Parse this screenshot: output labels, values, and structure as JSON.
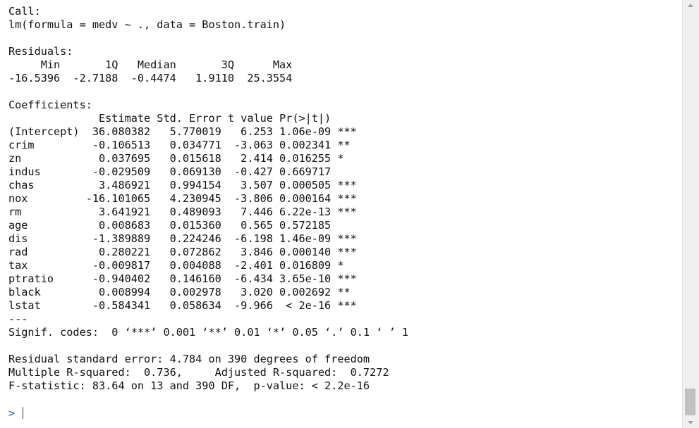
{
  "console": {
    "lines": [
      "Call:",
      "lm(formula = medv ~ ., data = Boston.train)",
      "",
      "Residuals:",
      "     Min       1Q   Median       3Q      Max ",
      "-16.5396  -2.7188  -0.4474   1.9110  25.3554 ",
      "",
      "Coefficients:",
      "              Estimate Std. Error t value Pr(>|t|)    ",
      "(Intercept)  36.080382   5.770019   6.253 1.06e-09 ***",
      "crim         -0.106513   0.034771  -3.063 0.002341 ** ",
      "zn            0.037695   0.015618   2.414 0.016255 *  ",
      "indus        -0.029509   0.069130  -0.427 0.669717    ",
      "chas          3.486921   0.994154   3.507 0.000505 ***",
      "nox         -16.101065   4.230945  -3.806 0.000164 ***",
      "rm            3.641921   0.489093   7.446 6.22e-13 ***",
      "age           0.008683   0.015360   0.565 0.572185    ",
      "dis          -1.389889   0.224246  -6.198 1.46e-09 ***",
      "rad           0.280221   0.072862   3.846 0.000140 ***",
      "tax          -0.009817   0.004088  -2.401 0.016809 *  ",
      "ptratio      -0.940402   0.146160  -6.434 3.65e-10 ***",
      "black         0.008994   0.002978   3.020 0.002692 ** ",
      "lstat        -0.584341   0.058634  -9.966  < 2e-16 ***",
      "---",
      "Signif. codes:  0 ‘***’ 0.001 ‘**’ 0.01 ‘*’ 0.05 ‘.’ 0.1 ‘ ’ 1",
      "",
      "Residual standard error: 4.784 on 390 degrees of freedom",
      "Multiple R-squared:  0.736,\tAdjusted R-squared:  0.7272 ",
      "F-statistic: 83.64 on 13 and 390 DF,  p-value: < 2.2e-16"
    ],
    "prompt": "> "
  },
  "colors": {
    "prompt": "#1a57c8",
    "text": "#111111",
    "scrollbar_track": "#f0f0f0",
    "scrollbar_thumb": "#c1c1c1"
  },
  "icons": {
    "scroll_up": "triangle-up",
    "scroll_down": "triangle-down"
  }
}
